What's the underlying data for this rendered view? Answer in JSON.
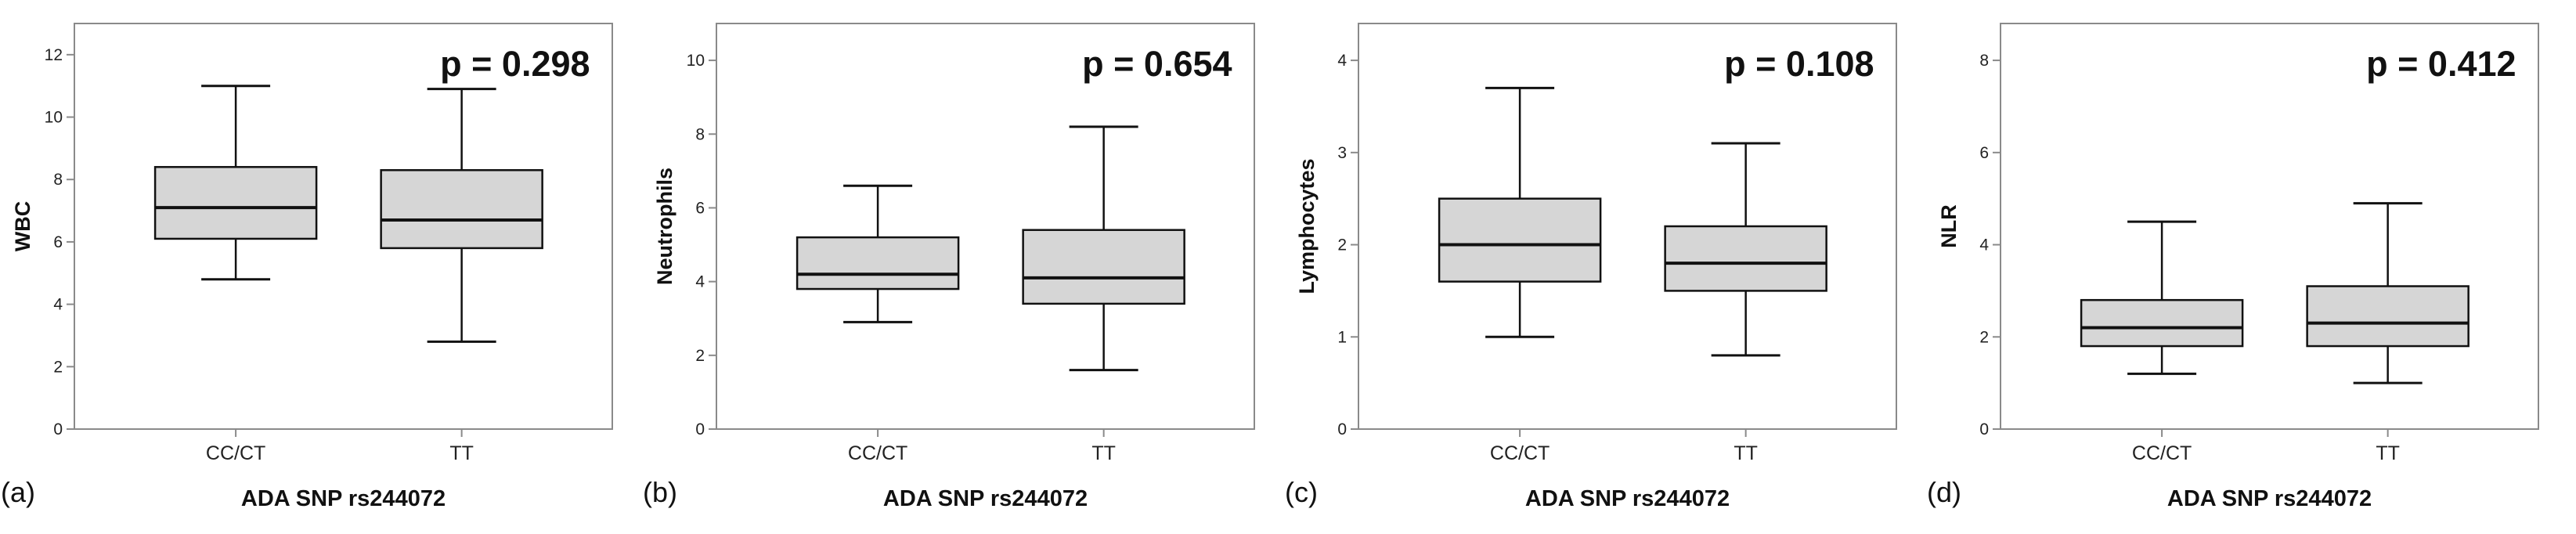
{
  "chart_data": [
    {
      "type": "box",
      "panel": "(a)",
      "title": "",
      "xlabel": "ADA SNP rs244072",
      "ylabel": "WBC",
      "annotation": "p = 0.298",
      "ylim": [
        0,
        13
      ],
      "yticks": [
        0,
        2,
        4,
        6,
        8,
        10,
        12
      ],
      "categories": [
        "CC/CT",
        "TT"
      ],
      "boxes": [
        {
          "name": "CC/CT",
          "min": 4.8,
          "q1": 6.1,
          "median": 7.1,
          "q3": 8.4,
          "max": 11.0
        },
        {
          "name": "TT",
          "min": 2.8,
          "q1": 5.8,
          "median": 6.7,
          "q3": 8.3,
          "max": 10.9
        }
      ]
    },
    {
      "type": "box",
      "panel": "(b)",
      "title": "",
      "xlabel": "ADA SNP rs244072",
      "ylabel": "Neutrophils",
      "annotation": "p = 0.654",
      "ylim": [
        0,
        11
      ],
      "yticks": [
        0,
        2,
        4,
        6,
        8,
        10
      ],
      "categories": [
        "CC/CT",
        "TT"
      ],
      "boxes": [
        {
          "name": "CC/CT",
          "min": 2.9,
          "q1": 3.8,
          "median": 4.2,
          "q3": 5.2,
          "max": 6.6
        },
        {
          "name": "TT",
          "min": 1.6,
          "q1": 3.4,
          "median": 4.1,
          "q3": 5.4,
          "max": 8.2
        }
      ]
    },
    {
      "type": "box",
      "panel": "(c)",
      "title": "",
      "xlabel": "ADA SNP rs244072",
      "ylabel": "Lymphocytes",
      "annotation": "p = 0.108",
      "ylim": [
        0,
        4.4
      ],
      "yticks": [
        0,
        1,
        2,
        3,
        4
      ],
      "categories": [
        "CC/CT",
        "TT"
      ],
      "boxes": [
        {
          "name": "CC/CT",
          "min": 1.0,
          "q1": 1.6,
          "median": 2.0,
          "q3": 2.5,
          "max": 3.7
        },
        {
          "name": "TT",
          "min": 0.8,
          "q1": 1.5,
          "median": 1.8,
          "q3": 2.2,
          "max": 3.1
        }
      ]
    },
    {
      "type": "box",
      "panel": "(d)",
      "title": "",
      "xlabel": "ADA SNP rs244072",
      "ylabel": "NLR",
      "annotation": "p = 0.412",
      "ylim": [
        0,
        8.8
      ],
      "yticks": [
        0,
        2,
        4,
        6,
        8
      ],
      "categories": [
        "CC/CT",
        "TT"
      ],
      "boxes": [
        {
          "name": "CC/CT",
          "min": 1.2,
          "q1": 1.8,
          "median": 2.2,
          "q3": 2.8,
          "max": 4.5
        },
        {
          "name": "TT",
          "min": 1.0,
          "q1": 1.8,
          "median": 2.3,
          "q3": 3.1,
          "max": 4.9
        }
      ]
    }
  ],
  "colors": {
    "box_fill": "#d6d6d6",
    "line": "#111111",
    "frame": "#8a8a8a"
  }
}
